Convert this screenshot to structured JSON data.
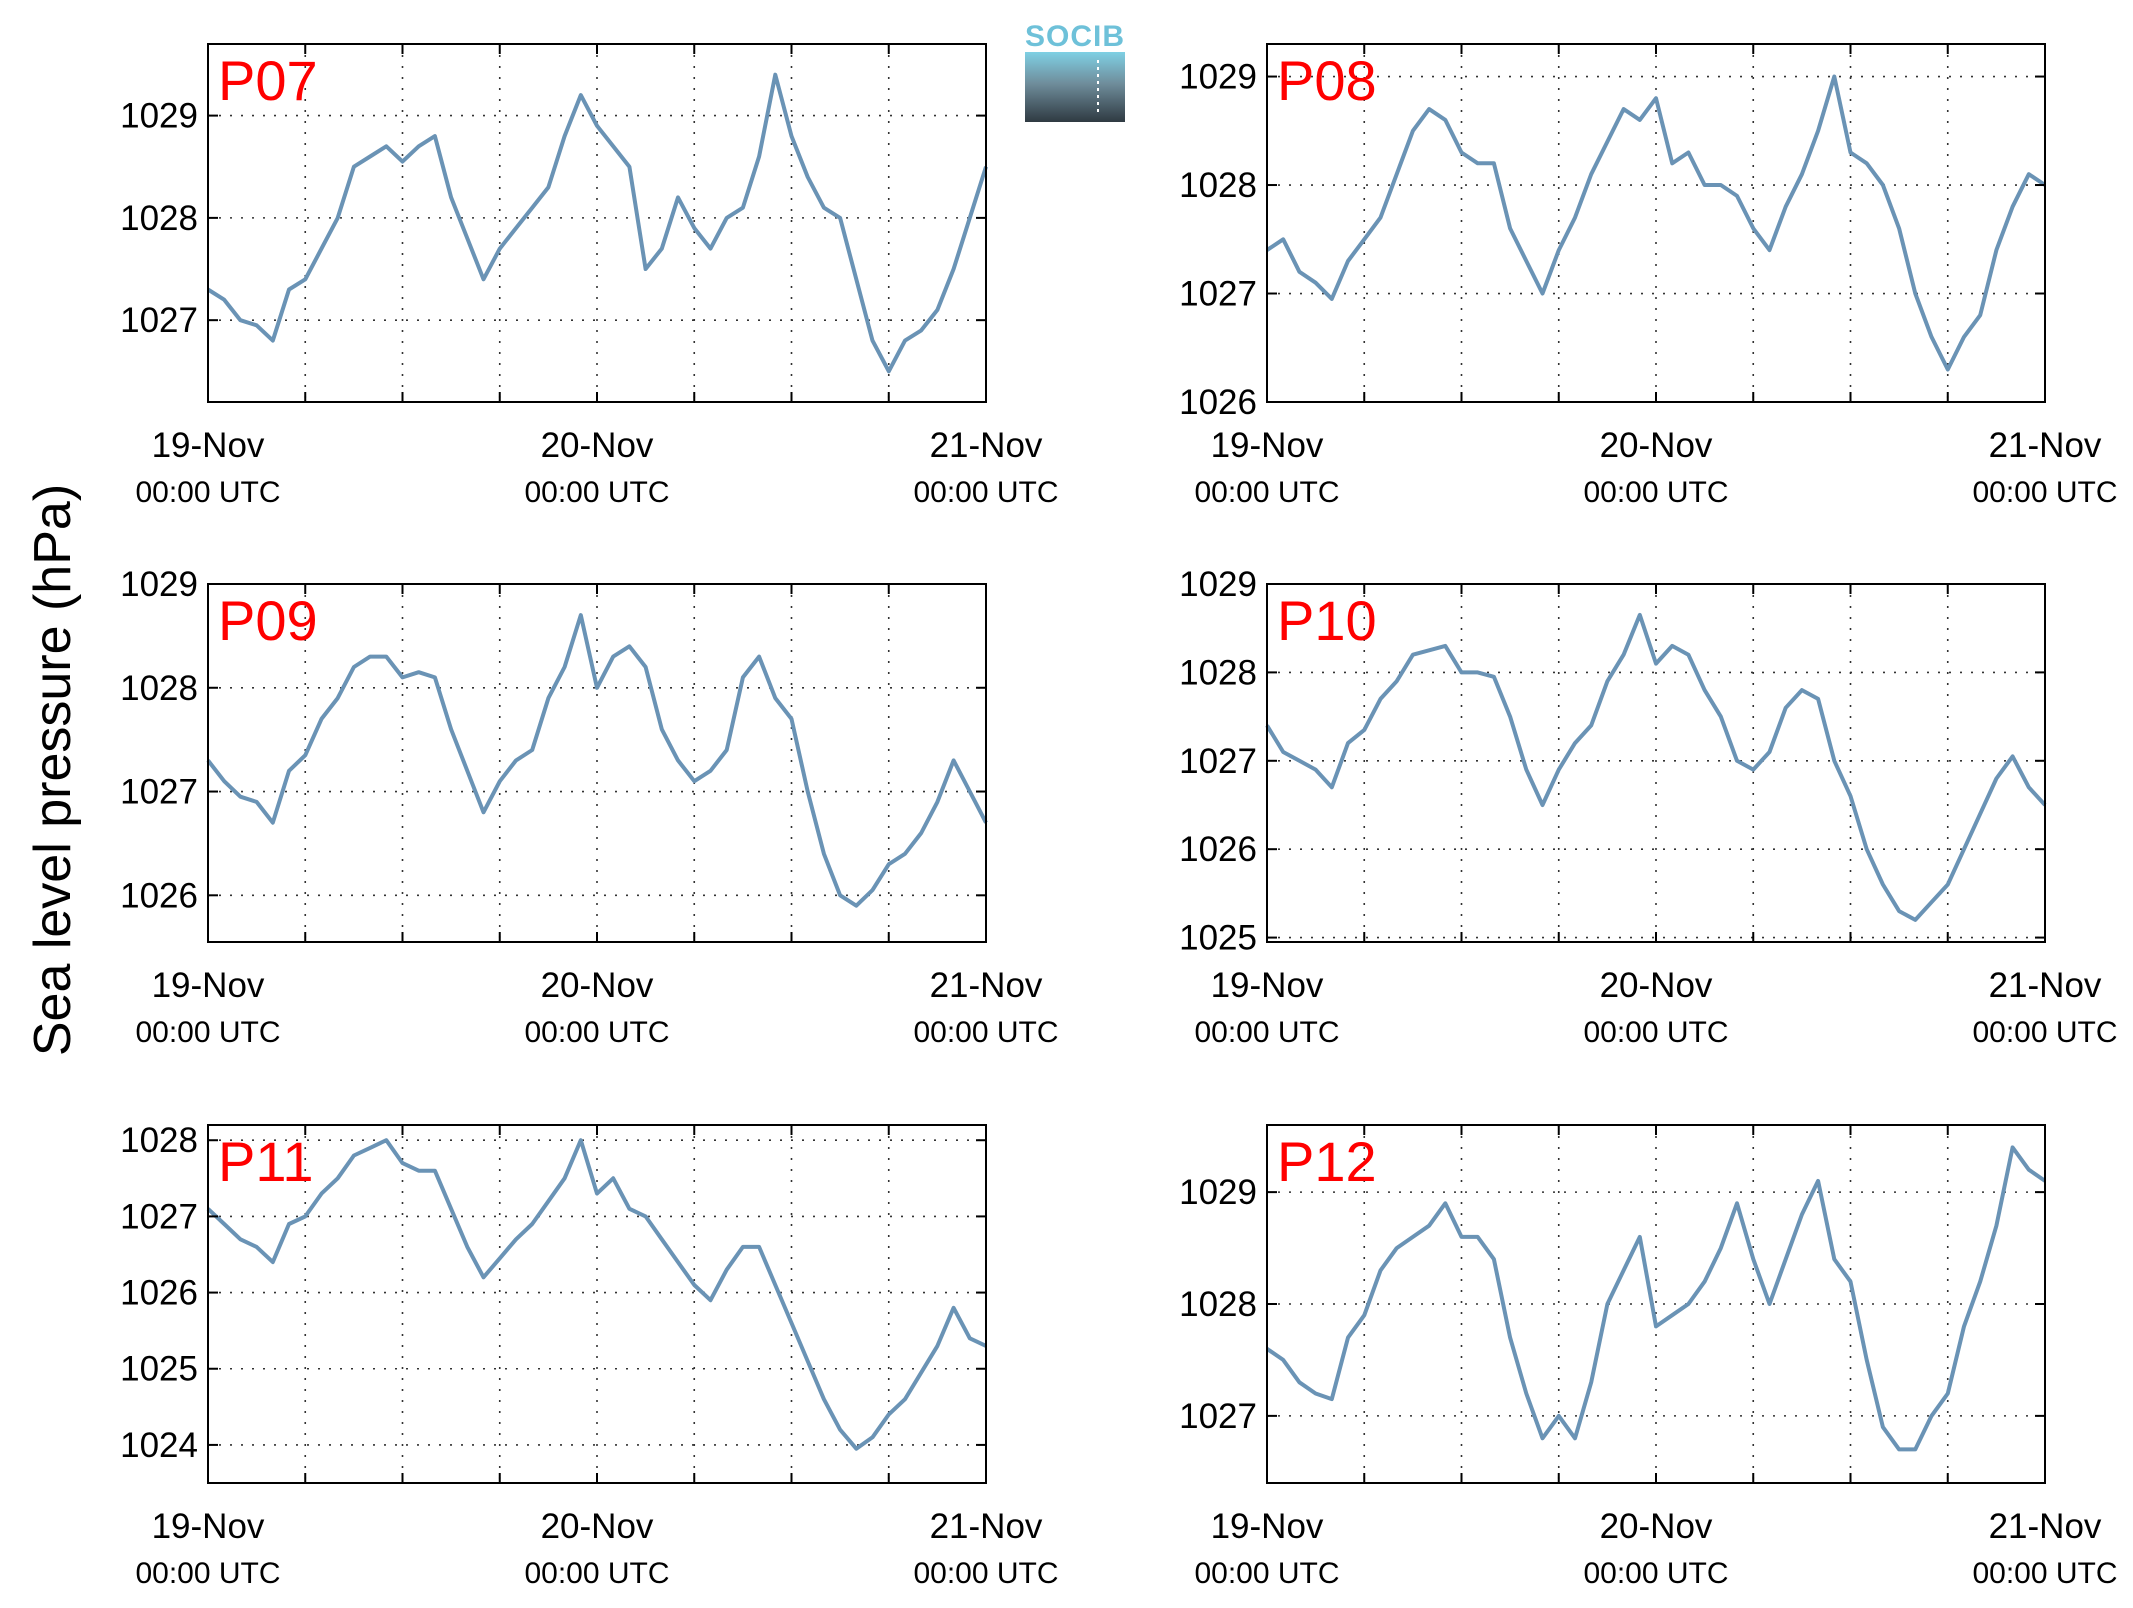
{
  "ylabel": "Sea level pressure (hPa)",
  "logo": {
    "text": "SOCIB",
    "accent": "#6ec1d9",
    "dark": "#2f3a42"
  },
  "colors": {
    "line": "#6a93b5",
    "label": "#ff0000"
  },
  "xticks": [
    {
      "date": "19-Nov",
      "time": "00:00 UTC"
    },
    {
      "date": "20-Nov",
      "time": "00:00 UTC"
    },
    {
      "date": "21-Nov",
      "time": "00:00 UTC"
    }
  ],
  "chart_data": [
    {
      "type": "line",
      "label": "P07",
      "x_unit": "hours since 19-Nov 00:00 UTC",
      "xlim": [
        0,
        48
      ],
      "ylim": [
        1026.2,
        1029.7
      ],
      "yticks": [
        1027,
        1028,
        1029
      ],
      "grid": true,
      "x": [
        0,
        1,
        2,
        3,
        4,
        5,
        6,
        7,
        8,
        9,
        10,
        11,
        12,
        13,
        14,
        15,
        16,
        17,
        18,
        19,
        20,
        21,
        22,
        23,
        24,
        25,
        26,
        27,
        28,
        29,
        30,
        31,
        32,
        33,
        34,
        35,
        36,
        37,
        38,
        39,
        40,
        41,
        42,
        43,
        44,
        45,
        46,
        47,
        48
      ],
      "y": [
        1027.3,
        1027.2,
        1027.0,
        1026.95,
        1026.8,
        1027.3,
        1027.4,
        1027.7,
        1028.0,
        1028.5,
        1028.6,
        1028.7,
        1028.55,
        1028.7,
        1028.8,
        1028.2,
        1027.8,
        1027.4,
        1027.7,
        1027.9,
        1028.1,
        1028.3,
        1028.8,
        1029.2,
        1028.9,
        1028.7,
        1028.5,
        1027.5,
        1027.7,
        1028.2,
        1027.9,
        1027.7,
        1028.0,
        1028.1,
        1028.6,
        1029.4,
        1028.8,
        1028.4,
        1028.1,
        1028.0,
        1027.4,
        1026.8,
        1026.5,
        1026.8,
        1026.9,
        1027.1,
        1027.5,
        1028.0,
        1028.5
      ]
    },
    {
      "type": "line",
      "label": "P08",
      "x_unit": "hours since 19-Nov 00:00 UTC",
      "xlim": [
        0,
        48
      ],
      "ylim": [
        1026.0,
        1029.3
      ],
      "yticks": [
        1026,
        1027,
        1028,
        1029
      ],
      "grid": true,
      "x": [
        0,
        1,
        2,
        3,
        4,
        5,
        6,
        7,
        8,
        9,
        10,
        11,
        12,
        13,
        14,
        15,
        16,
        17,
        18,
        19,
        20,
        21,
        22,
        23,
        24,
        25,
        26,
        27,
        28,
        29,
        30,
        31,
        32,
        33,
        34,
        35,
        36,
        37,
        38,
        39,
        40,
        41,
        42,
        43,
        44,
        45,
        46,
        47,
        48
      ],
      "y": [
        1027.4,
        1027.5,
        1027.2,
        1027.1,
        1026.95,
        1027.3,
        1027.5,
        1027.7,
        1028.1,
        1028.5,
        1028.7,
        1028.6,
        1028.3,
        1028.2,
        1028.2,
        1027.6,
        1027.3,
        1027.0,
        1027.4,
        1027.7,
        1028.1,
        1028.4,
        1028.7,
        1028.6,
        1028.8,
        1028.2,
        1028.3,
        1028.0,
        1028.0,
        1027.9,
        1027.6,
        1027.4,
        1027.8,
        1028.1,
        1028.5,
        1029.0,
        1028.3,
        1028.2,
        1028.0,
        1027.6,
        1027.0,
        1026.6,
        1026.3,
        1026.6,
        1026.8,
        1027.4,
        1027.8,
        1028.1,
        1028.0
      ]
    },
    {
      "type": "line",
      "label": "P09",
      "x_unit": "hours since 19-Nov 00:00 UTC",
      "xlim": [
        0,
        48
      ],
      "ylim": [
        1025.55,
        1029.0
      ],
      "yticks": [
        1026,
        1027,
        1028,
        1029
      ],
      "grid": true,
      "x": [
        0,
        1,
        2,
        3,
        4,
        5,
        6,
        7,
        8,
        9,
        10,
        11,
        12,
        13,
        14,
        15,
        16,
        17,
        18,
        19,
        20,
        21,
        22,
        23,
        24,
        25,
        26,
        27,
        28,
        29,
        30,
        31,
        32,
        33,
        34,
        35,
        36,
        37,
        38,
        39,
        40,
        41,
        42,
        43,
        44,
        45,
        46,
        47,
        48
      ],
      "y": [
        1027.3,
        1027.1,
        1026.95,
        1026.9,
        1026.7,
        1027.2,
        1027.35,
        1027.7,
        1027.9,
        1028.2,
        1028.3,
        1028.3,
        1028.1,
        1028.15,
        1028.1,
        1027.6,
        1027.2,
        1026.8,
        1027.1,
        1027.3,
        1027.4,
        1027.9,
        1028.2,
        1028.7,
        1028.0,
        1028.3,
        1028.4,
        1028.2,
        1027.6,
        1027.3,
        1027.1,
        1027.2,
        1027.4,
        1028.1,
        1028.3,
        1027.9,
        1027.7,
        1027.0,
        1026.4,
        1026.0,
        1025.9,
        1026.05,
        1026.3,
        1026.4,
        1026.6,
        1026.9,
        1027.3,
        1027.0,
        1026.7
      ]
    },
    {
      "type": "line",
      "label": "P10",
      "x_unit": "hours since 19-Nov 00:00 UTC",
      "xlim": [
        0,
        48
      ],
      "ylim": [
        1024.95,
        1029.0
      ],
      "yticks": [
        1025,
        1026,
        1027,
        1028,
        1029
      ],
      "grid": true,
      "x": [
        0,
        1,
        2,
        3,
        4,
        5,
        6,
        7,
        8,
        9,
        10,
        11,
        12,
        13,
        14,
        15,
        16,
        17,
        18,
        19,
        20,
        21,
        22,
        23,
        24,
        25,
        26,
        27,
        28,
        29,
        30,
        31,
        32,
        33,
        34,
        35,
        36,
        37,
        38,
        39,
        40,
        41,
        42,
        43,
        44,
        45,
        46,
        47,
        48
      ],
      "y": [
        1027.4,
        1027.1,
        1027.0,
        1026.9,
        1026.7,
        1027.2,
        1027.35,
        1027.7,
        1027.9,
        1028.2,
        1028.25,
        1028.3,
        1028.0,
        1028.0,
        1027.95,
        1027.5,
        1026.9,
        1026.5,
        1026.9,
        1027.2,
        1027.4,
        1027.9,
        1028.2,
        1028.65,
        1028.1,
        1028.3,
        1028.2,
        1027.8,
        1027.5,
        1027.0,
        1026.9,
        1027.1,
        1027.6,
        1027.8,
        1027.7,
        1027.0,
        1026.6,
        1026.0,
        1025.6,
        1025.3,
        1025.2,
        1025.4,
        1025.6,
        1026.0,
        1026.4,
        1026.8,
        1027.05,
        1026.7,
        1026.5
      ]
    },
    {
      "type": "line",
      "label": "P11",
      "x_unit": "hours since 19-Nov 00:00 UTC",
      "xlim": [
        0,
        48
      ],
      "ylim": [
        1023.5,
        1028.2
      ],
      "yticks": [
        1024,
        1025,
        1026,
        1027,
        1028
      ],
      "grid": true,
      "x": [
        0,
        1,
        2,
        3,
        4,
        5,
        6,
        7,
        8,
        9,
        10,
        11,
        12,
        13,
        14,
        15,
        16,
        17,
        18,
        19,
        20,
        21,
        22,
        23,
        24,
        25,
        26,
        27,
        28,
        29,
        30,
        31,
        32,
        33,
        34,
        35,
        36,
        37,
        38,
        39,
        40,
        41,
        42,
        43,
        44,
        45,
        46,
        47,
        48
      ],
      "y": [
        1027.1,
        1026.9,
        1026.7,
        1026.6,
        1026.4,
        1026.9,
        1027.0,
        1027.3,
        1027.5,
        1027.8,
        1027.9,
        1028.0,
        1027.7,
        1027.6,
        1027.6,
        1027.1,
        1026.6,
        1026.2,
        1026.45,
        1026.7,
        1026.9,
        1027.2,
        1027.5,
        1028.0,
        1027.3,
        1027.5,
        1027.1,
        1027.0,
        1026.7,
        1026.4,
        1026.1,
        1025.9,
        1026.3,
        1026.6,
        1026.6,
        1026.1,
        1025.6,
        1025.1,
        1024.6,
        1024.2,
        1023.95,
        1024.1,
        1024.4,
        1024.6,
        1024.95,
        1025.3,
        1025.8,
        1025.4,
        1025.3
      ]
    },
    {
      "type": "line",
      "label": "P12",
      "x_unit": "hours since 19-Nov 00:00 UTC",
      "xlim": [
        0,
        48
      ],
      "ylim": [
        1026.4,
        1029.6
      ],
      "yticks": [
        1027,
        1028,
        1029
      ],
      "grid": true,
      "x": [
        0,
        1,
        2,
        3,
        4,
        5,
        6,
        7,
        8,
        9,
        10,
        11,
        12,
        13,
        14,
        15,
        16,
        17,
        18,
        19,
        20,
        21,
        22,
        23,
        24,
        25,
        26,
        27,
        28,
        29,
        30,
        31,
        32,
        33,
        34,
        35,
        36,
        37,
        38,
        39,
        40,
        41,
        42,
        43,
        44,
        45,
        46,
        47,
        48
      ],
      "y": [
        1027.6,
        1027.5,
        1027.3,
        1027.2,
        1027.15,
        1027.7,
        1027.9,
        1028.3,
        1028.5,
        1028.6,
        1028.7,
        1028.9,
        1028.6,
        1028.6,
        1028.4,
        1027.7,
        1027.2,
        1026.8,
        1027.0,
        1026.8,
        1027.3,
        1028.0,
        1028.3,
        1028.6,
        1027.8,
        1027.9,
        1028.0,
        1028.2,
        1028.5,
        1028.9,
        1028.4,
        1028.0,
        1028.4,
        1028.8,
        1029.1,
        1028.4,
        1028.2,
        1027.5,
        1026.9,
        1026.7,
        1026.7,
        1027.0,
        1027.2,
        1027.8,
        1028.2,
        1028.7,
        1029.4,
        1029.2,
        1029.1
      ]
    }
  ]
}
